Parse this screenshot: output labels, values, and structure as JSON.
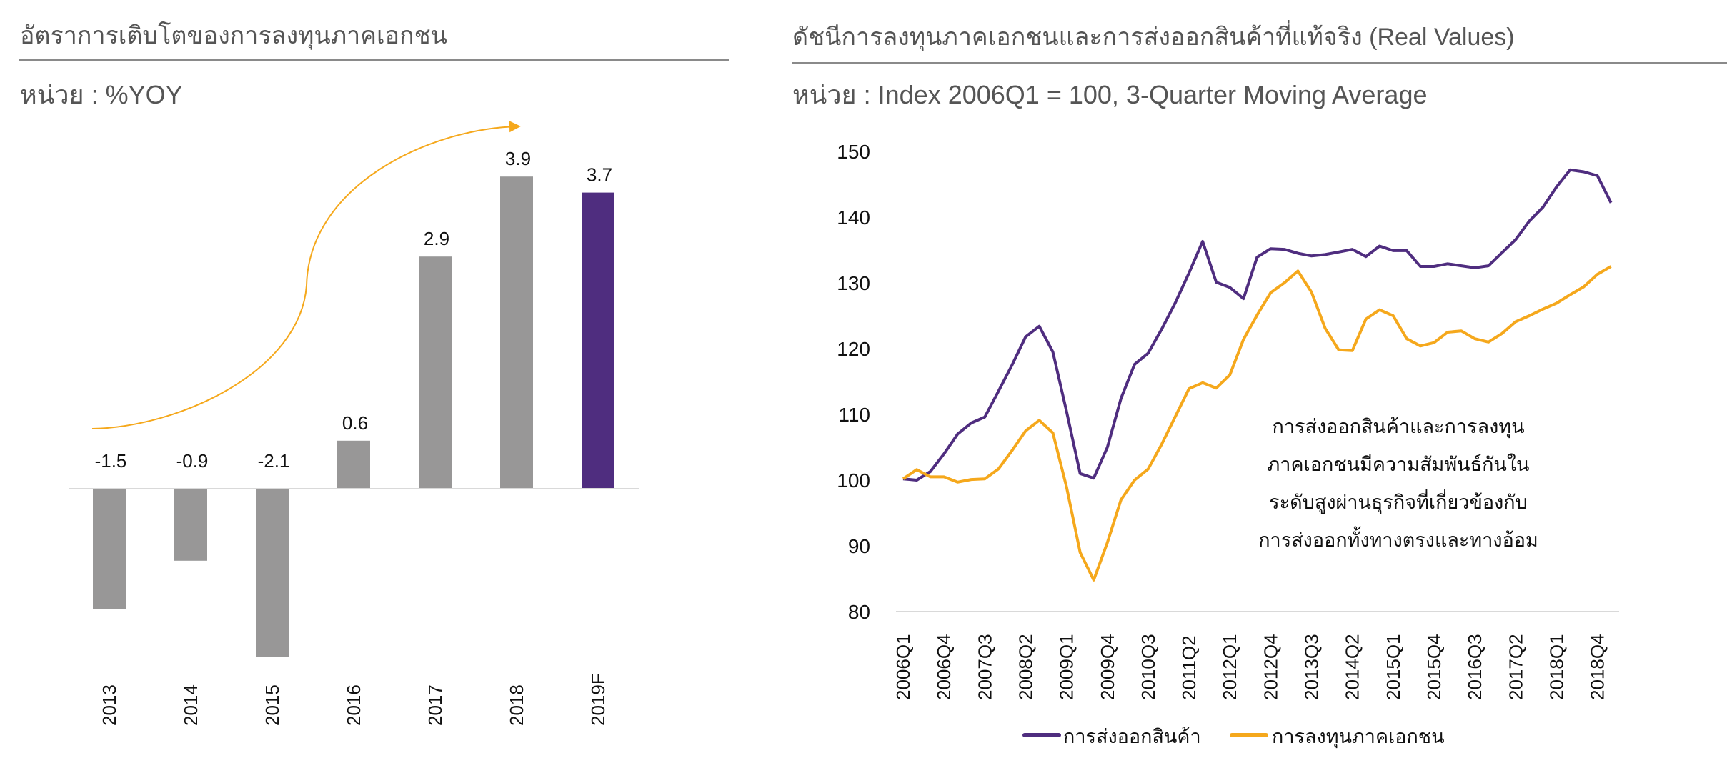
{
  "left_panel": {
    "title": "อัตราการเติบโตของการลงทุนภาคเอกชน",
    "unit": "หน่วย : %YOY"
  },
  "right_panel": {
    "title": "ดัชนีการลงทุนภาคเอกชนและการส่งออกสินค้าที่แท้จริง (Real Values)",
    "unit": "หน่วย : Index 2006Q1 = 100, 3-Quarter Moving Average",
    "annotation": [
      "การส่งออกสินค้าและการลงทุน",
      "ภาคเอกชนมีความสัมพันธ์กันใน",
      "ระดับสูงผ่านธุรกิจที่เกี่ยวข้องกับ",
      "การส่งออกทั้งทางตรงและทางอ้อม"
    ]
  },
  "chart_data": [
    {
      "type": "bar",
      "categories": [
        "2013",
        "2014",
        "2015",
        "2016",
        "2017",
        "2018",
        "2019F"
      ],
      "values": [
        -1.5,
        -0.9,
        -2.1,
        0.6,
        2.9,
        3.9,
        3.7
      ],
      "data_labels": [
        "-1.5",
        "-0.9",
        "-2.1",
        "0.6",
        "2.9",
        "3.9",
        "3.7"
      ],
      "colors": {
        "actual": "#989797",
        "forecast": "#4f2d7f",
        "trend_arrow": "#f5a81c"
      },
      "annotation": "upward trend arrow",
      "grid": false
    },
    {
      "type": "line",
      "x_tick_labels": [
        "2006Q1",
        "2006Q4",
        "2007Q3",
        "2008Q2",
        "2009Q1",
        "2009Q4",
        "2010Q3",
        "2011Q2",
        "2012Q1",
        "2012Q4",
        "2013Q3",
        "2014Q2",
        "2015Q1",
        "2015Q4",
        "2016Q3",
        "2017Q2",
        "2018Q1",
        "2018Q4"
      ],
      "x_range": [
        "2006Q1",
        "2019Q1"
      ],
      "ylim": [
        80,
        150
      ],
      "y_ticks": [
        80,
        90,
        100,
        110,
        120,
        130,
        140,
        150
      ],
      "grid": false,
      "legend_position": "bottom",
      "series": [
        {
          "name": "การส่งออกสินค้า",
          "color": "#4f2d7f",
          "values": [
            100.2,
            100.0,
            101.3,
            104,
            107,
            108.7,
            109.6,
            113.5,
            117.5,
            121.8,
            123.4,
            119.5,
            110.5,
            101,
            100.3,
            105,
            112.4,
            117.6,
            119.3,
            123,
            127,
            131.5,
            136.3,
            130.1,
            129.3,
            127.6,
            133.9,
            135.2,
            135.1,
            134.5,
            134.1,
            134.3,
            134.7,
            135.1,
            134.0,
            135.6,
            134.9,
            134.9,
            132.5,
            132.5,
            132.9,
            132.6,
            132.3,
            132.6,
            134.6,
            136.6,
            139.4,
            141.5,
            144.6,
            147.2,
            146.9,
            146.3,
            142.2
          ]
        },
        {
          "name": "การลงทุนภาคเอกชน",
          "color": "#f5a81c",
          "values": [
            100.2,
            101.6,
            100.5,
            100.5,
            99.7,
            100.1,
            100.2,
            101.7,
            104.5,
            107.5,
            109.1,
            107.2,
            99,
            89,
            84.8,
            90.5,
            97,
            100,
            101.7,
            105.5,
            109.7,
            113.9,
            114.8,
            114,
            116,
            121.4,
            125.1,
            128.5,
            130,
            131.8,
            128.6,
            123.1,
            119.8,
            119.7,
            124.5,
            125.9,
            125,
            121.5,
            120.4,
            120.9,
            122.5,
            122.7,
            121.5,
            121,
            122.3,
            124.1,
            125,
            126,
            126.9,
            128.2,
            129.4,
            131.3,
            132.5
          ]
        }
      ]
    }
  ]
}
